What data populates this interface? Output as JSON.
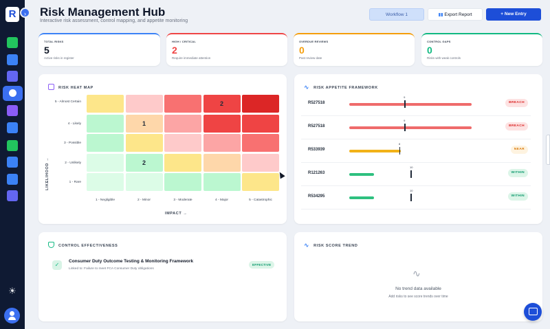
{
  "header": {
    "title": "Risk Management Hub",
    "subtitle": "Interactive risk assessment, control mapping, and appetite monitoring",
    "workflow_label": "Workflow 1",
    "export_label": "Export Report",
    "new_entry_label": "New Entry"
  },
  "stats": [
    {
      "label": "TOTAL RISKS",
      "value": "5",
      "desc": "Active risks in register",
      "color": "#111827",
      "accent": "#3b82f6"
    },
    {
      "label": "HIGH / CRITICAL",
      "value": "2",
      "desc": "Require immediate attention",
      "color": "#ef4444",
      "accent": "#ef4444"
    },
    {
      "label": "OVERDUE REVIEWS",
      "value": "0",
      "desc": "Past review date",
      "color": "#f59e0b",
      "accent": "#f59e0b"
    },
    {
      "label": "CONTROL GAPS",
      "value": "0",
      "desc": "Risks with weak controls",
      "color": "#10b981",
      "accent": "#10b981"
    }
  ],
  "heatmap": {
    "title": "RISK HEAT MAP",
    "y_axis": "LIKELIHOOD",
    "x_axis": "IMPACT",
    "rows": [
      "5 - Almost Certain",
      "4 - Likely",
      "3 - Possible",
      "2 - Unlikely",
      "1 - Rare"
    ],
    "cols": [
      "1 - Negligible",
      "2 - Minor",
      "3 - Moderate",
      "4 - Major",
      "5 - Catastrophic"
    ],
    "colors": [
      [
        "#fde68a",
        "#fecaca",
        "#f87171",
        "#ef4444",
        "#dc2626"
      ],
      [
        "#bbf7d0",
        "#fed7aa",
        "#fca5a5",
        "#ef4444",
        "#ef4444"
      ],
      [
        "#bbf7d0",
        "#fde68a",
        "#fecaca",
        "#fca5a5",
        "#f87171"
      ],
      [
        "#dcfce7",
        "#bbf7d0",
        "#fde68a",
        "#fed7aa",
        "#fecaca"
      ],
      [
        "#dcfce7",
        "#dcfce7",
        "#bbf7d0",
        "#bbf7d0",
        "#fde68a"
      ]
    ],
    "counts": [
      [
        "",
        "",
        "",
        "2",
        ""
      ],
      [
        "",
        "1",
        "",
        "",
        ""
      ],
      [
        "",
        "",
        "",
        "",
        ""
      ],
      [
        "",
        "2",
        "",
        "",
        ""
      ],
      [
        "",
        "",
        "",
        "",
        ""
      ]
    ]
  },
  "appetite": {
    "title": "RISK APPETITE FRAMEWORK",
    "rows": [
      {
        "id": "R527518",
        "fill": 1.0,
        "threshold": 0.45,
        "threshold_label": "9",
        "status": "BREACH",
        "status_class": "breach",
        "color": "#ef6b6b"
      },
      {
        "id": "R527518",
        "fill": 1.0,
        "threshold": 0.45,
        "threshold_label": "9",
        "status": "BREACH",
        "status_class": "breach",
        "color": "#ef6b6b"
      },
      {
        "id": "R533939",
        "fill": 0.42,
        "threshold": 0.41,
        "threshold_label": "8",
        "status": "NEAR",
        "status_class": "near",
        "color": "#f2b218"
      },
      {
        "id": "R121263",
        "fill": 0.2,
        "threshold": 0.5,
        "threshold_label": "10",
        "status": "WITHIN",
        "status_class": "within",
        "color": "#2ec07f"
      },
      {
        "id": "R534295",
        "fill": 0.2,
        "threshold": 0.5,
        "threshold_label": "10",
        "status": "WITHIN",
        "status_class": "within",
        "color": "#2ec07f"
      }
    ]
  },
  "controls": {
    "title": "CONTROL EFFECTIVENESS",
    "item_name": "Consumer Duty Outcome Testing & Monitoring Framework",
    "item_link": "Linked to: Failure to meet FCA Consumer Duty obligations",
    "item_status": "EFFECTIVE"
  },
  "trend": {
    "title": "RISK SCORE TREND",
    "empty": "No trend data available",
    "hint": "Add risks to see score trends over time"
  },
  "icons": {
    "sidebar": [
      "reports-icon",
      "building-icon",
      "users-icon",
      "risk-icon",
      "document-icon",
      "dashboard-icon",
      "message-icon",
      "chart-icon",
      "list-icon",
      "file-icon"
    ]
  }
}
